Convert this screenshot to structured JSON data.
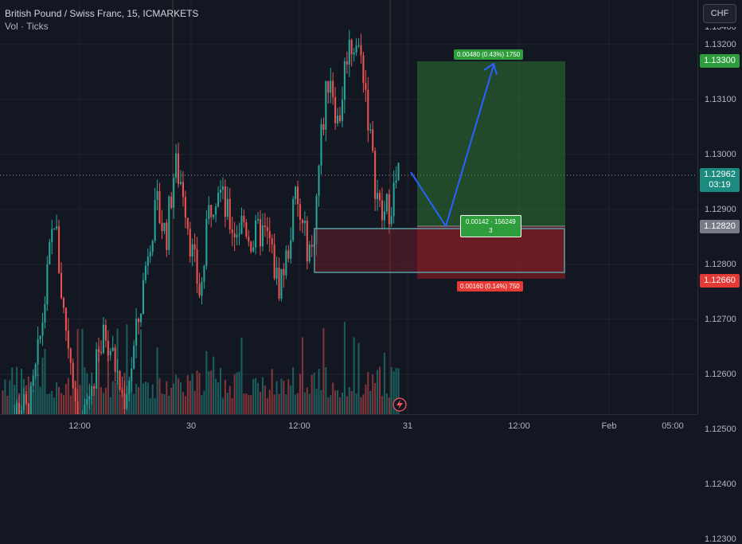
{
  "legend": {
    "symbol": "British Pound / Swiss Franc, 15, ICMARKETS",
    "indicator": "Vol · Ticks"
  },
  "currency_button": "CHF",
  "price_axis": {
    "labels": [
      "1.13200",
      "1.13100",
      "1.13000",
      "1.12900",
      "1.12800",
      "1.12700",
      "1.12600",
      "1.12500",
      "1.12400",
      "1.12300"
    ],
    "partial_top": "1.13400",
    "tp_tag": "1.13300",
    "current_tag": "1.12962",
    "countdown": "03:19",
    "entry_tag": "1.12820",
    "sl_tag": "1.12660"
  },
  "time_axis": {
    "labels": [
      "12:00",
      "30",
      "12:00",
      "31",
      "12:00",
      "Feb",
      "05:00"
    ]
  },
  "position": {
    "target_label": "0.00480 (0.43%) 1750",
    "entry_label_line1": "0.00142 · 156249",
    "entry_label_line2": "3",
    "stop_label": "0.00160 (0.14%) 750"
  },
  "colors": {
    "background": "#131722",
    "up": "#26a69a",
    "down": "#ef5350",
    "target_zone": "#2e7d32",
    "stop_zone": "#b71c1c",
    "projection_arrow": "#2962ff"
  },
  "chart_data": {
    "type": "candlestick",
    "symbol": "GBPCHF",
    "interval": "15",
    "y_range": [
      1.1225,
      1.1345
    ],
    "current_price": 1.12962,
    "long_position": {
      "entry": 1.1282,
      "take_profit": 1.133,
      "stop_loss": 1.1266
    },
    "close_path": [
      1.1248,
      1.1251,
      1.1255,
      1.1252,
      1.1262,
      1.1275,
      1.1289,
      1.1272,
      1.1262,
      1.1248,
      1.1256,
      1.1262,
      1.1268,
      1.1262,
      1.1255,
      1.1262,
      1.1272,
      1.1285,
      1.129,
      1.1285,
      1.1298,
      1.1294,
      1.1282,
      1.1274,
      1.129,
      1.1295,
      1.1289,
      1.1286,
      1.1288,
      1.1284,
      1.1286,
      1.1284,
      1.1276,
      1.1281,
      1.1292,
      1.1285,
      1.1282,
      1.1303,
      1.1316,
      1.1305,
      1.1319,
      1.1321,
      1.1315,
      1.1298,
      1.1288,
      1.1291,
      1.1296
    ]
  }
}
